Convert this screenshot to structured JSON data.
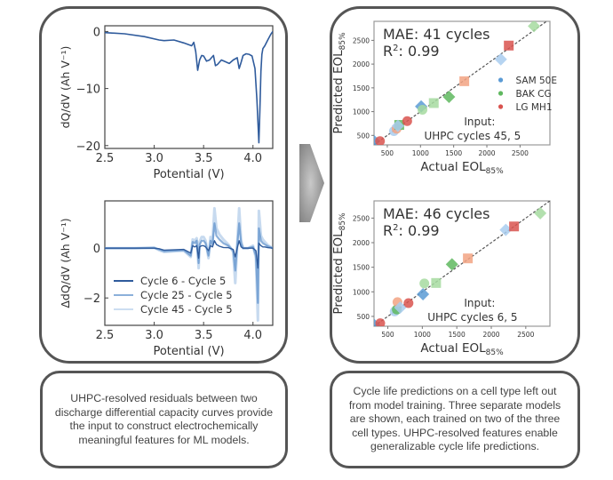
{
  "captions": {
    "left": "UHPC-resolved residuals between two discharge differential capacity curves provide the input to construct electrochemically meaningful features for ML models.",
    "right": "Cycle life predictions on a cell type left out from model training. Three separate models are shown, each trained on two of the three cell types. UHPC-resolved features enable generalizable cycle life predictions."
  },
  "colors": {
    "frame": "#555555",
    "curve": "#2f5b9c",
    "sam": "#5b9bd5",
    "bak": "#5fb85f",
    "lg": "#e8664a",
    "arrow": "#9a9a9a"
  },
  "chart_data": [
    {
      "id": "dqdv",
      "type": "line",
      "title": "",
      "xlabel": "Potential (V)",
      "ylabel": "dQ/dV (Ah V⁻¹)",
      "xlim": [
        2.5,
        4.2
      ],
      "ylim": [
        -20.5,
        1
      ],
      "xticks": [
        2.5,
        3.0,
        3.5,
        4.0
      ],
      "xticklabels": [
        "2.5",
        "3.0",
        "3.5",
        "4.0"
      ],
      "yticks": [
        0,
        -10,
        -20
      ],
      "yticklabels": [
        "0",
        "−10",
        "−20"
      ],
      "series": [
        {
          "name": "dQ/dV",
          "x": [
            2.5,
            2.7,
            2.9,
            3.05,
            3.1,
            3.2,
            3.3,
            3.38,
            3.4,
            3.42,
            3.44,
            3.46,
            3.48,
            3.5,
            3.53,
            3.56,
            3.6,
            3.62,
            3.64,
            3.68,
            3.72,
            3.76,
            3.8,
            3.84,
            3.86,
            3.88,
            3.9,
            3.93,
            3.96,
            3.99,
            4.02,
            4.04,
            4.06,
            4.07,
            4.08,
            4.09,
            4.1,
            4.12,
            4.15,
            4.18,
            4.2
          ],
          "y": [
            -0.2,
            -0.4,
            -0.9,
            -1.5,
            -1.6,
            -1.5,
            -2.0,
            -2.5,
            -1.9,
            -3.5,
            -6.8,
            -5.0,
            -4.2,
            -4.3,
            -5.2,
            -5.0,
            -4.2,
            -6.0,
            -5.8,
            -5.0,
            -5.3,
            -5.6,
            -5.0,
            -4.6,
            -6.5,
            -5.4,
            -4.2,
            -3.9,
            -4.0,
            -4.3,
            -6.5,
            -12,
            -19.5,
            -14,
            -7,
            -4,
            -3,
            -2.5,
            -1.5,
            -0.5,
            0
          ]
        }
      ]
    },
    {
      "id": "residual",
      "type": "line",
      "title": "",
      "xlabel": "Potential (V)",
      "ylabel": "ΔdQ/dV (Ah V⁻¹)",
      "xlim": [
        2.5,
        4.2
      ],
      "ylim": [
        -3.1,
        1.9
      ],
      "xticks": [
        2.5,
        3.0,
        3.5,
        4.0
      ],
      "xticklabels": [
        "2.5",
        "3.0",
        "3.5",
        "4.0"
      ],
      "yticks": [
        0,
        -2
      ],
      "yticklabels": [
        "0",
        "−2"
      ],
      "legend": {
        "position": "lower-left",
        "entries": [
          "Cycle 6 - Cycle 5",
          "Cycle 25 - Cycle 5",
          "Cycle 45 - Cycle 5"
        ]
      },
      "x": [
        2.5,
        2.8,
        3.0,
        3.05,
        3.1,
        3.3,
        3.37,
        3.39,
        3.41,
        3.43,
        3.45,
        3.46,
        3.48,
        3.5,
        3.52,
        3.55,
        3.57,
        3.59,
        3.61,
        3.63,
        3.66,
        3.7,
        3.75,
        3.8,
        3.82,
        3.84,
        3.86,
        3.88,
        3.9,
        3.95,
        4.0,
        4.03,
        4.05,
        4.06,
        4.08,
        4.1,
        4.12,
        4.15,
        4.2
      ],
      "series": [
        {
          "name": "Cycle 6 - Cycle 5",
          "y": [
            0,
            0,
            0,
            -0.02,
            -0.08,
            -0.05,
            -0.2,
            0.1,
            0.05,
            0.1,
            -0.4,
            0.05,
            0.1,
            0.1,
            0.05,
            -0.1,
            0.1,
            0.05,
            0.3,
            0.15,
            0.08,
            0.03,
            0.02,
            -0.05,
            -0.35,
            0.0,
            0.3,
            0.05,
            0.0,
            0.0,
            0.0,
            -0.1,
            -0.8,
            0.2,
            0.1,
            0.05,
            0.05,
            0.02,
            0.0
          ]
        },
        {
          "name": "Cycle 25 - Cycle 5",
          "y": [
            0,
            0,
            0.01,
            -0.05,
            -0.12,
            -0.08,
            -0.3,
            0.25,
            0.2,
            0.3,
            -0.6,
            0.15,
            0.3,
            0.3,
            0.2,
            -0.3,
            0.3,
            0.15,
            1.0,
            0.5,
            0.35,
            0.2,
            0.1,
            -0.1,
            -0.9,
            0.1,
            1.0,
            0.2,
            0.0,
            0.0,
            0.05,
            -0.3,
            -2.2,
            0.8,
            0.3,
            0.2,
            0.15,
            0.08,
            0.0
          ]
        },
        {
          "name": "Cycle 45 - Cycle 5",
          "y": [
            0,
            0,
            0.02,
            -0.08,
            -0.15,
            -0.1,
            -0.35,
            0.35,
            0.3,
            0.4,
            -0.8,
            0.25,
            0.45,
            0.45,
            0.3,
            -0.4,
            0.45,
            0.25,
            1.6,
            0.8,
            0.55,
            0.35,
            0.15,
            -0.15,
            -1.4,
            0.15,
            1.6,
            0.3,
            0.0,
            0.0,
            0.1,
            -0.4,
            -2.9,
            1.5,
            0.5,
            0.35,
            0.25,
            0.12,
            0.0
          ]
        }
      ]
    },
    {
      "id": "eol-45-5",
      "type": "scatter",
      "xlabel": "Actual EOL",
      "xlabel_sub": "85%",
      "ylabel": "Predicted EOL",
      "ylabel_sub": "85%",
      "xlim": [
        300,
        2950
      ],
      "ylim": [
        300,
        2900
      ],
      "xticks": [
        500,
        1000,
        1500,
        2000,
        2500
      ],
      "yticks": [
        500,
        1000,
        1500,
        2000,
        2500
      ],
      "annotations": {
        "mae": "MAE: 41 cycles",
        "r2_prefix": "R",
        "r2_sup": "2",
        "r2_value": ": 0.99",
        "input_label": "Input:",
        "input_value": "UHPC cycles 45, 5"
      },
      "legend": {
        "position": "right",
        "entries": [
          {
            "label": "SAM 50E",
            "cell": "sam"
          },
          {
            "label": "BAK CG",
            "cell": "bak"
          },
          {
            "label": "LG MH1",
            "cell": "lg"
          }
        ]
      },
      "points": [
        {
          "cell": "sam",
          "marker": "diamond",
          "x": 300,
          "y": 380,
          "shade": "dark"
        },
        {
          "cell": "lg",
          "marker": "circle",
          "x": 390,
          "y": 380,
          "shade": "dark"
        },
        {
          "cell": "sam",
          "marker": "circle",
          "x": 600,
          "y": 590,
          "shade": "light"
        },
        {
          "cell": "lg",
          "marker": "circle",
          "x": 640,
          "y": 640,
          "shade": "light"
        },
        {
          "cell": "bak",
          "marker": "square",
          "x": 680,
          "y": 720,
          "shade": "dark"
        },
        {
          "cell": "sam",
          "marker": "diamond",
          "x": 660,
          "y": 700,
          "shade": "light"
        },
        {
          "cell": "lg",
          "marker": "circle",
          "x": 800,
          "y": 800,
          "shade": "dark"
        },
        {
          "cell": "sam",
          "marker": "diamond",
          "x": 1010,
          "y": 1110,
          "shade": "dark"
        },
        {
          "cell": "bak",
          "marker": "circle",
          "x": 1030,
          "y": 1040,
          "shade": "light"
        },
        {
          "cell": "bak",
          "marker": "square",
          "x": 1200,
          "y": 1180,
          "shade": "light"
        },
        {
          "cell": "bak",
          "marker": "diamond",
          "x": 1430,
          "y": 1310,
          "shade": "dark"
        },
        {
          "cell": "lg",
          "marker": "square",
          "x": 1660,
          "y": 1640,
          "shade": "light"
        },
        {
          "cell": "sam",
          "marker": "diamond",
          "x": 2210,
          "y": 2100,
          "shade": "light"
        },
        {
          "cell": "lg",
          "marker": "square",
          "x": 2330,
          "y": 2390,
          "shade": "dark"
        },
        {
          "cell": "bak",
          "marker": "diamond",
          "x": 2710,
          "y": 2800,
          "shade": "light"
        }
      ]
    },
    {
      "id": "eol-6-5",
      "type": "scatter",
      "xlabel": "Actual EOL",
      "xlabel_sub": "85%",
      "ylabel": "Predicted EOL",
      "ylabel_sub": "85%",
      "xlim": [
        300,
        2850
      ],
      "ylim": [
        300,
        2850
      ],
      "xticks": [
        500,
        1000,
        1500,
        2000,
        2500
      ],
      "yticks": [
        500,
        1000,
        1500,
        2000,
        2500
      ],
      "annotations": {
        "mae": "MAE: 46 cycles",
        "r2_prefix": "R",
        "r2_sup": "2",
        "r2_value": ": 0.99",
        "input_label": "Input:",
        "input_value": "UHPC cycles 6, 5"
      },
      "points": [
        {
          "cell": "sam",
          "marker": "diamond",
          "x": 300,
          "y": 330,
          "shade": "dark"
        },
        {
          "cell": "lg",
          "marker": "circle",
          "x": 390,
          "y": 360,
          "shade": "dark"
        },
        {
          "cell": "sam",
          "marker": "circle",
          "x": 600,
          "y": 600,
          "shade": "light"
        },
        {
          "cell": "bak",
          "marker": "circle",
          "x": 630,
          "y": 640,
          "shade": "dark"
        },
        {
          "cell": "lg",
          "marker": "circle",
          "x": 640,
          "y": 790,
          "shade": "light"
        },
        {
          "cell": "sam",
          "marker": "diamond",
          "x": 680,
          "y": 680,
          "shade": "light"
        },
        {
          "cell": "lg",
          "marker": "circle",
          "x": 800,
          "y": 770,
          "shade": "dark"
        },
        {
          "cell": "sam",
          "marker": "diamond",
          "x": 1010,
          "y": 950,
          "shade": "dark"
        },
        {
          "cell": "bak",
          "marker": "circle",
          "x": 1030,
          "y": 1170,
          "shade": "light"
        },
        {
          "cell": "bak",
          "marker": "square",
          "x": 1200,
          "y": 1180,
          "shade": "light"
        },
        {
          "cell": "bak",
          "marker": "diamond",
          "x": 1430,
          "y": 1560,
          "shade": "dark"
        },
        {
          "cell": "lg",
          "marker": "square",
          "x": 1660,
          "y": 1680,
          "shade": "light"
        },
        {
          "cell": "sam",
          "marker": "diamond",
          "x": 2210,
          "y": 2260,
          "shade": "light"
        },
        {
          "cell": "lg",
          "marker": "square",
          "x": 2330,
          "y": 2330,
          "shade": "dark"
        },
        {
          "cell": "bak",
          "marker": "diamond",
          "x": 2710,
          "y": 2600,
          "shade": "light"
        }
      ]
    }
  ]
}
